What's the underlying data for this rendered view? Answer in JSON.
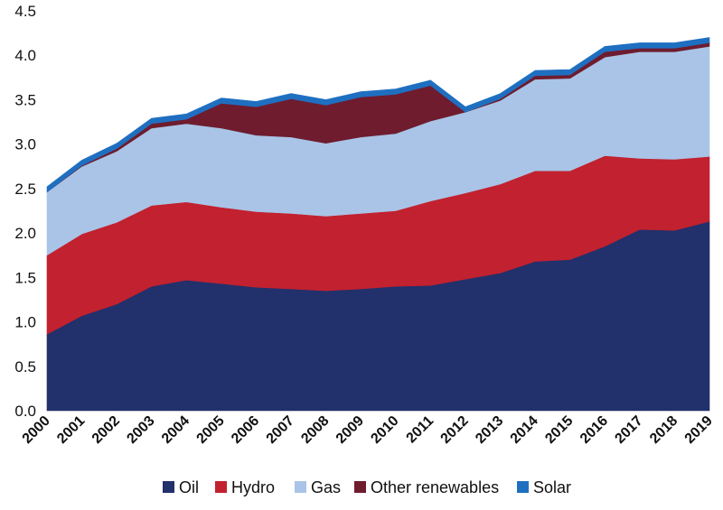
{
  "chart_data": {
    "type": "area",
    "stacked": true,
    "x": [
      "2000",
      "2001",
      "2002",
      "2003",
      "2004",
      "2005",
      "2006",
      "2007",
      "2008",
      "2009",
      "2010",
      "2011",
      "2012",
      "2013",
      "2014",
      "2015",
      "2016",
      "2017",
      "2018",
      "2019"
    ],
    "series": [
      {
        "name": "Oil",
        "color": "#22306b",
        "values": [
          0.86,
          1.07,
          1.2,
          1.4,
          1.47,
          1.43,
          1.39,
          1.37,
          1.35,
          1.37,
          1.4,
          1.41,
          1.48,
          1.55,
          1.68,
          1.7,
          1.85,
          2.04,
          2.03,
          2.13
        ]
      },
      {
        "name": "Hydro",
        "color": "#c2212f",
        "values": [
          0.89,
          0.92,
          0.92,
          0.91,
          0.88,
          0.86,
          0.85,
          0.85,
          0.84,
          0.85,
          0.85,
          0.95,
          0.97,
          1.0,
          1.02,
          1.0,
          1.02,
          0.8,
          0.8,
          0.73
        ]
      },
      {
        "name": "Gas",
        "color": "#a9c4e6",
        "values": [
          0.71,
          0.76,
          0.8,
          0.87,
          0.88,
          0.89,
          0.86,
          0.86,
          0.82,
          0.86,
          0.87,
          0.9,
          0.91,
          0.94,
          1.03,
          1.04,
          1.11,
          1.2,
          1.21,
          1.24
        ]
      },
      {
        "name": "Other renewables",
        "color": "#6e1c2e",
        "values": [
          0.0,
          0.01,
          0.03,
          0.05,
          0.05,
          0.28,
          0.32,
          0.43,
          0.43,
          0.45,
          0.44,
          0.4,
          0.0,
          0.02,
          0.04,
          0.04,
          0.06,
          0.04,
          0.04,
          0.04
        ]
      },
      {
        "name": "Solar",
        "color": "#1f6fc1",
        "values": [
          0.06,
          0.06,
          0.06,
          0.06,
          0.06,
          0.06,
          0.06,
          0.06,
          0.06,
          0.06,
          0.06,
          0.06,
          0.06,
          0.06,
          0.06,
          0.06,
          0.06,
          0.06,
          0.06,
          0.06
        ]
      }
    ],
    "ylim": [
      0,
      4.5
    ],
    "yticks": [
      "0.0",
      "0.5",
      "1.0",
      "1.5",
      "2.0",
      "2.5",
      "3.0",
      "3.5",
      "4.0",
      "4.5"
    ],
    "grid": false,
    "legend_position": "bottom"
  }
}
